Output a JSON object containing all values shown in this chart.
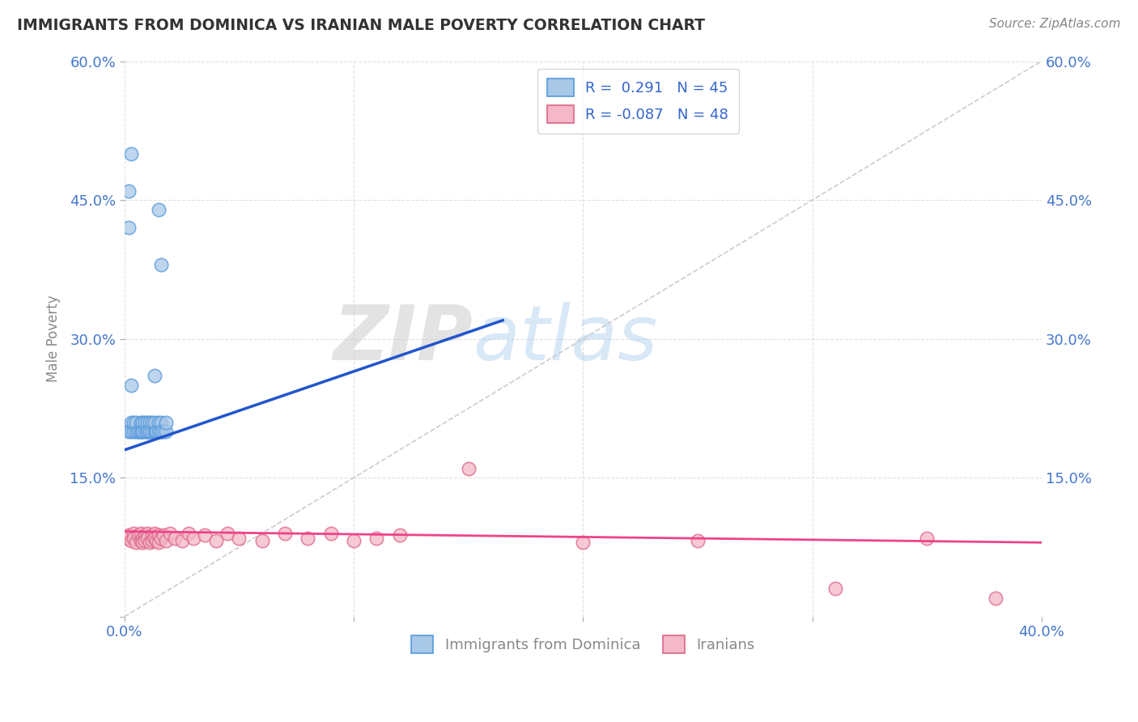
{
  "title": "IMMIGRANTS FROM DOMINICA VS IRANIAN MALE POVERTY CORRELATION CHART",
  "source": "Source: ZipAtlas.com",
  "ylabel": "Male Poverty",
  "xlim": [
    0.0,
    0.4
  ],
  "ylim": [
    0.0,
    0.6
  ],
  "xticks": [
    0.0,
    0.1,
    0.2,
    0.3,
    0.4
  ],
  "yticks": [
    0.0,
    0.15,
    0.3,
    0.45,
    0.6
  ],
  "ytick_labels": [
    "",
    "15.0%",
    "30.0%",
    "45.0%",
    "60.0%"
  ],
  "xtick_labels": [
    "0.0%",
    "",
    "",
    "",
    "40.0%"
  ],
  "blue_color": "#a8c8e8",
  "pink_color": "#f4b8c8",
  "trend_blue": "#2255cc",
  "trend_pink": "#ee4488",
  "watermark_zip": "ZIP",
  "watermark_atlas": "atlas",
  "blue_scatter_x": [
    0.002,
    0.003,
    0.003,
    0.004,
    0.004,
    0.005,
    0.005,
    0.006,
    0.006,
    0.007,
    0.007,
    0.007,
    0.008,
    0.008,
    0.008,
    0.009,
    0.009,
    0.01,
    0.01,
    0.01,
    0.01,
    0.011,
    0.011,
    0.011,
    0.012,
    0.012,
    0.013,
    0.013,
    0.014,
    0.014,
    0.015,
    0.015,
    0.016,
    0.016,
    0.016,
    0.017,
    0.018,
    0.018,
    0.002,
    0.003,
    0.015,
    0.016,
    0.013,
    0.002,
    0.003
  ],
  "blue_scatter_y": [
    0.2,
    0.21,
    0.2,
    0.2,
    0.21,
    0.2,
    0.21,
    0.2,
    0.2,
    0.2,
    0.2,
    0.21,
    0.2,
    0.21,
    0.2,
    0.2,
    0.21,
    0.2,
    0.21,
    0.2,
    0.2,
    0.2,
    0.21,
    0.2,
    0.2,
    0.21,
    0.2,
    0.21,
    0.2,
    0.2,
    0.2,
    0.21,
    0.2,
    0.21,
    0.2,
    0.2,
    0.2,
    0.21,
    0.42,
    0.5,
    0.44,
    0.38,
    0.26,
    0.46,
    0.25
  ],
  "pink_scatter_x": [
    0.001,
    0.002,
    0.003,
    0.004,
    0.004,
    0.005,
    0.006,
    0.007,
    0.007,
    0.008,
    0.008,
    0.009,
    0.009,
    0.01,
    0.01,
    0.011,
    0.012,
    0.012,
    0.013,
    0.013,
    0.014,
    0.015,
    0.015,
    0.016,
    0.017,
    0.018,
    0.02,
    0.022,
    0.025,
    0.028,
    0.03,
    0.035,
    0.04,
    0.045,
    0.05,
    0.06,
    0.07,
    0.08,
    0.09,
    0.1,
    0.11,
    0.12,
    0.15,
    0.2,
    0.25,
    0.31,
    0.35,
    0.38
  ],
  "pink_scatter_y": [
    0.085,
    0.088,
    0.082,
    0.09,
    0.085,
    0.08,
    0.088,
    0.082,
    0.09,
    0.085,
    0.08,
    0.088,
    0.082,
    0.09,
    0.085,
    0.08,
    0.088,
    0.082,
    0.09,
    0.085,
    0.082,
    0.088,
    0.08,
    0.085,
    0.088,
    0.082,
    0.09,
    0.085,
    0.082,
    0.09,
    0.085,
    0.088,
    0.082,
    0.09,
    0.085,
    0.082,
    0.09,
    0.085,
    0.09,
    0.082,
    0.085,
    0.088,
    0.16,
    0.08,
    0.082,
    0.03,
    0.085,
    0.02
  ],
  "blue_trend_x0": 0.0,
  "blue_trend_y0": 0.18,
  "blue_trend_x1": 0.165,
  "blue_trend_y1": 0.32,
  "pink_trend_x0": 0.0,
  "pink_trend_y0": 0.092,
  "pink_trend_x1": 0.4,
  "pink_trend_y1": 0.08
}
